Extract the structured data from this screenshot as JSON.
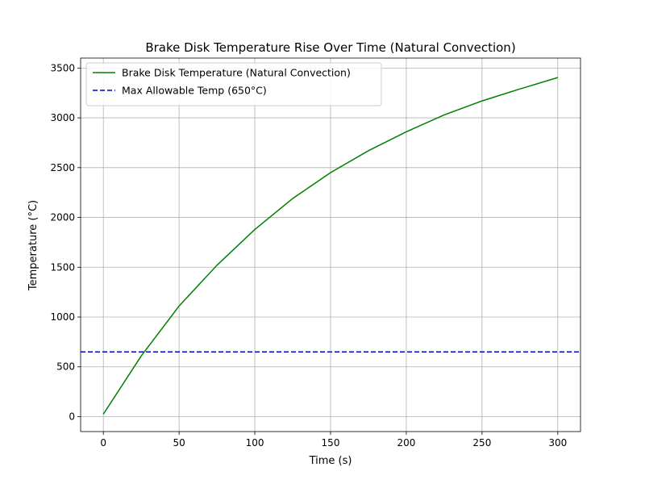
{
  "chart_data": {
    "type": "line",
    "title": "Brake Disk Temperature Rise Over Time (Natural Convection)",
    "xlabel": "Time (s)",
    "ylabel": "Temperature (°C)",
    "xlim": [
      -15,
      315
    ],
    "ylim": [
      -150,
      3600
    ],
    "xticks": [
      0,
      50,
      100,
      150,
      200,
      250,
      300
    ],
    "yticks": [
      0,
      500,
      1000,
      1500,
      2000,
      2500,
      3000,
      3500
    ],
    "grid": true,
    "legend_position": "upper-left",
    "series": [
      {
        "name": "Brake Disk Temperature (Natural Convection)",
        "color": "#008000",
        "style": "solid",
        "x": [
          0,
          25,
          50,
          75,
          100,
          125,
          150,
          175,
          200,
          225,
          250,
          275,
          300
        ],
        "y": [
          25,
          610,
          1110,
          1520,
          1880,
          2190,
          2450,
          2670,
          2860,
          3030,
          3170,
          3290,
          3405
        ]
      },
      {
        "name": "Max Allowable Temp (650°C)",
        "color": "#0000cc",
        "style": "dashed",
        "type": "hline",
        "y": 650
      }
    ]
  }
}
